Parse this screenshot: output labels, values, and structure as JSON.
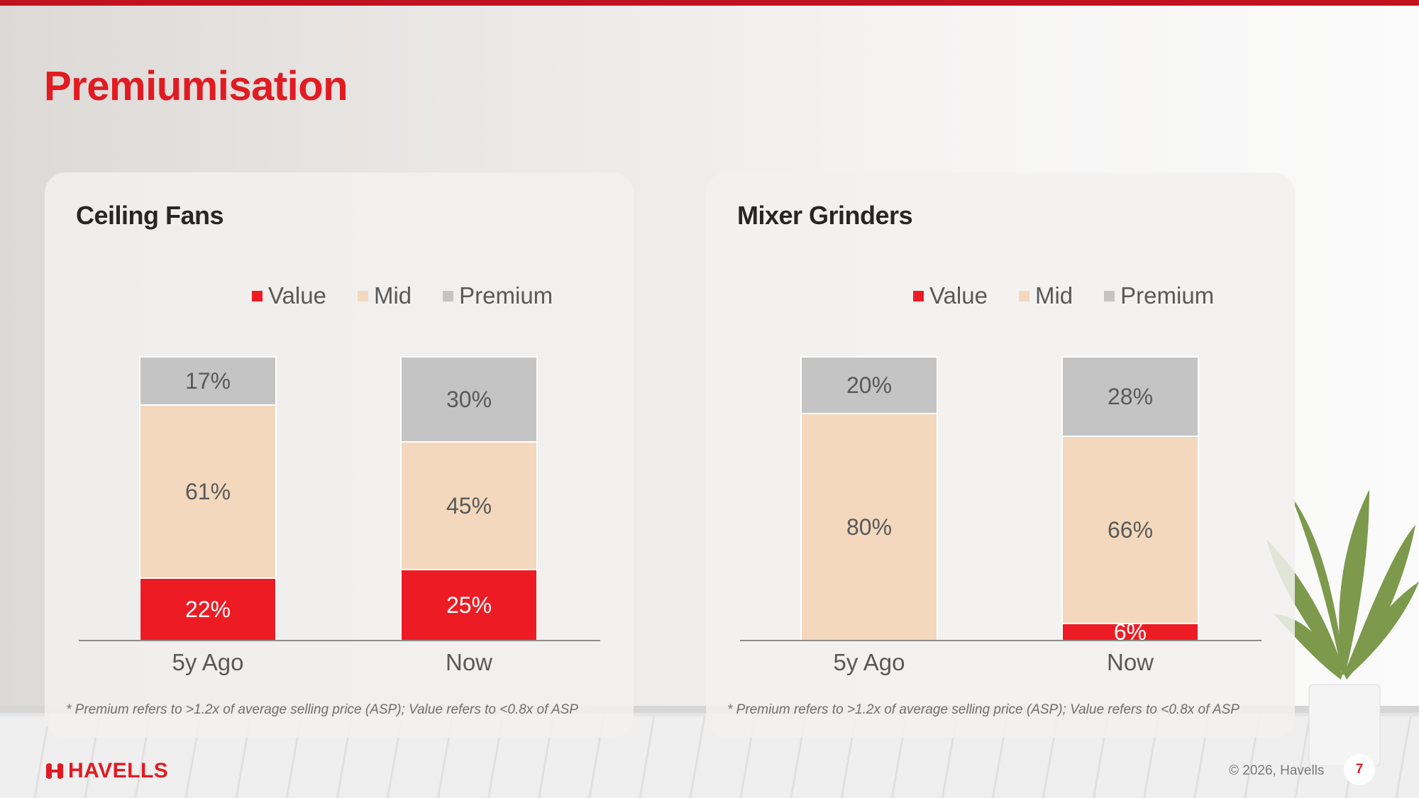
{
  "title": "Premiumisation",
  "colors": {
    "accent": "#e11b22",
    "value": "#ed1c24",
    "mid": "#f3d8bd",
    "premium": "#c4c4c4"
  },
  "chart_data": [
    {
      "type": "bar",
      "stacked": true,
      "title": "Ceiling Fans",
      "categories": [
        "5y Ago",
        "Now"
      ],
      "series": [
        {
          "name": "Value",
          "values": [
            22,
            25
          ],
          "labels": [
            "22%",
            "25%"
          ]
        },
        {
          "name": "Mid",
          "values": [
            61,
            45
          ],
          "labels": [
            "61%",
            "45%"
          ]
        },
        {
          "name": "Premium",
          "values": [
            17,
            30
          ],
          "labels": [
            "17%",
            "30%"
          ]
        }
      ],
      "legend": "top",
      "grid": false,
      "ylim": [
        0,
        100
      ],
      "footnote": "* Premium refers to >1.2x of average selling price (ASP); Value refers to <0.8x of ASP"
    },
    {
      "type": "bar",
      "stacked": true,
      "title": "Mixer Grinders",
      "categories": [
        "5y Ago",
        "Now"
      ],
      "series": [
        {
          "name": "Value",
          "values": [
            0,
            6
          ],
          "labels": [
            "",
            "6%"
          ]
        },
        {
          "name": "Mid",
          "values": [
            80,
            66
          ],
          "labels": [
            "80%",
            "66%"
          ]
        },
        {
          "name": "Premium",
          "values": [
            20,
            28
          ],
          "labels": [
            "20%",
            "28%"
          ]
        }
      ],
      "legend": "top",
      "grid": false,
      "ylim": [
        0,
        100
      ],
      "footnote": "* Premium refers to >1.2x of average selling price (ASP); Value refers to <0.8x of ASP"
    }
  ],
  "footer": {
    "logo_text": "HAVELLS",
    "copyright": "© 2026, Havells",
    "page_number": "7"
  }
}
